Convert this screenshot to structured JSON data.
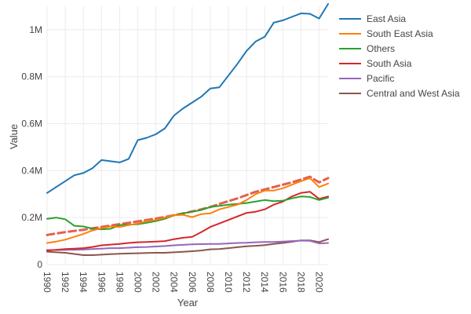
{
  "chart_data": {
    "type": "line",
    "title": "",
    "xlabel": "Year",
    "ylabel": "Value",
    "xlim": [
      1990,
      2021
    ],
    "ylim": [
      0,
      1100000
    ],
    "grid": true,
    "legend_position": "right",
    "x_ticks": [
      1990,
      1992,
      1994,
      1996,
      1998,
      2000,
      2002,
      2004,
      2006,
      2008,
      2010,
      2012,
      2014,
      2016,
      2018,
      2020
    ],
    "y_ticks": [
      {
        "value": 0,
        "label": "0"
      },
      {
        "value": 200000,
        "label": "0.2M"
      },
      {
        "value": 400000,
        "label": "0.4M"
      },
      {
        "value": 600000,
        "label": "0.6M"
      },
      {
        "value": 800000,
        "label": "0.8M"
      },
      {
        "value": 1000000,
        "label": "1M"
      }
    ],
    "x": [
      1990,
      1991,
      1992,
      1993,
      1994,
      1995,
      1996,
      1997,
      1998,
      1999,
      2000,
      2001,
      2002,
      2003,
      2004,
      2005,
      2006,
      2007,
      2008,
      2009,
      2010,
      2011,
      2012,
      2013,
      2014,
      2015,
      2016,
      2017,
      2018,
      2019,
      2020,
      2021
    ],
    "series": [
      {
        "name": "East Asia",
        "color": "#1f77b4",
        "dash": false,
        "values": [
          305000,
          330000,
          355000,
          380000,
          390000,
          410000,
          445000,
          440000,
          435000,
          450000,
          530000,
          540000,
          555000,
          580000,
          635000,
          665000,
          690000,
          715000,
          750000,
          755000,
          805000,
          855000,
          910000,
          950000,
          970000,
          1030000,
          1040000,
          1055000,
          1070000,
          1068000,
          1048000,
          1110000
        ]
      },
      {
        "name": "South East Asia",
        "color": "#ff7f0e",
        "dash": false,
        "values": [
          92000,
          98000,
          106000,
          118000,
          130000,
          145000,
          155000,
          162000,
          160000,
          168000,
          175000,
          185000,
          190000,
          200000,
          210000,
          212000,
          202000,
          215000,
          218000,
          235000,
          245000,
          255000,
          275000,
          300000,
          315000,
          315000,
          325000,
          340000,
          355000,
          368000,
          330000,
          345000
        ]
      },
      {
        "name": "Others",
        "color": "#2ca02c",
        "dash": false,
        "values": [
          195000,
          200000,
          193000,
          165000,
          162000,
          153000,
          150000,
          152000,
          168000,
          170000,
          172000,
          178000,
          185000,
          195000,
          210000,
          218000,
          225000,
          232000,
          245000,
          250000,
          255000,
          258000,
          262000,
          268000,
          275000,
          270000,
          272000,
          282000,
          290000,
          288000,
          275000,
          285000
        ]
      },
      {
        "name": "South Asia",
        "color": "#d62728",
        "dash": false,
        "values": [
          60000,
          63000,
          66000,
          68000,
          70000,
          75000,
          82000,
          85000,
          88000,
          92000,
          95000,
          96000,
          98000,
          100000,
          108000,
          114000,
          118000,
          138000,
          160000,
          175000,
          190000,
          205000,
          220000,
          225000,
          235000,
          255000,
          268000,
          290000,
          305000,
          310000,
          280000,
          290000
        ]
      },
      {
        "name": "Pacific",
        "color": "#9467bd",
        "dash": false,
        "values": [
          62000,
          62000,
          63000,
          63000,
          64000,
          66000,
          68000,
          70000,
          70000,
          72000,
          74000,
          75000,
          77000,
          79000,
          82000,
          84000,
          86000,
          87000,
          88000,
          88000,
          90000,
          92000,
          93000,
          95000,
          96000,
          96000,
          98000,
          100000,
          102000,
          101000,
          90000,
          92000
        ]
      },
      {
        "name": "Central and West Asia",
        "color": "#8c564b",
        "dash": false,
        "values": [
          55000,
          52000,
          50000,
          45000,
          40000,
          40000,
          42000,
          44000,
          46000,
          47000,
          48000,
          49000,
          50000,
          50000,
          52000,
          54000,
          57000,
          60000,
          65000,
          66000,
          70000,
          74000,
          78000,
          80000,
          83000,
          88000,
          92000,
          97000,
          103000,
          103000,
          96000,
          108000
        ]
      },
      {
        "name": "",
        "color": "#e3604f",
        "dash": true,
        "values": [
          126000,
          132000,
          138000,
          143000,
          148000,
          154000,
          160000,
          166000,
          172000,
          178000,
          184000,
          190000,
          196000,
          203000,
          210000,
          218000,
          226000,
          235000,
          245000,
          258000,
          270000,
          282000,
          296000,
          310000,
          320000,
          330000,
          340000,
          350000,
          362000,
          374000,
          350000,
          368000
        ]
      }
    ]
  }
}
